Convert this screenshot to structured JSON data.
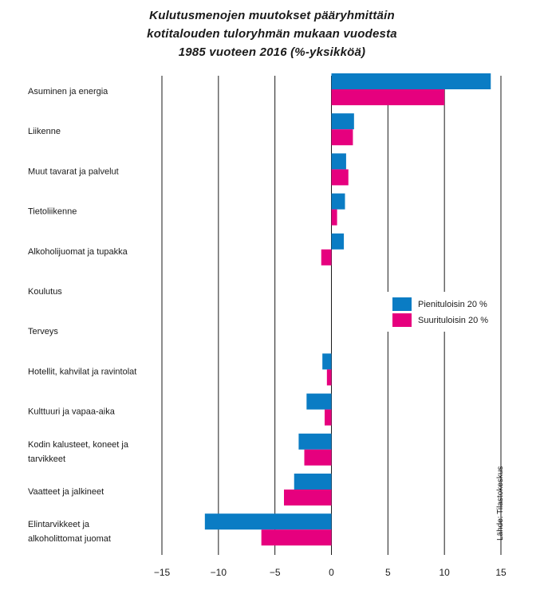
{
  "chart_data": {
    "type": "bar",
    "orientation": "horizontal",
    "title_lines": [
      "Kulutusmenojen muutokset pääryhmittäin",
      "kotitalouden tuloryhmän mukaan vuodesta",
      "1985 vuoteen 2016 (%-yksikköä)"
    ],
    "categories": [
      [
        "Asuminen ja energia"
      ],
      [
        "Liikenne"
      ],
      [
        "Muut tavarat ja palvelut"
      ],
      [
        "Tietoliikenne"
      ],
      [
        "Alkoholijuomat ja tupakka"
      ],
      [
        "Koulutus"
      ],
      [
        "Terveys"
      ],
      [
        "Hotellit, kahvilat ja ravintolat"
      ],
      [
        "Kulttuuri ja vapaa-aika"
      ],
      [
        "Kodin kalusteet, koneet ja",
        "tarvikkeet"
      ],
      [
        "Vaatteet ja jalkineet"
      ],
      [
        "Elintarvikkeet ja",
        "alkoholittomat juomat"
      ]
    ],
    "series": [
      {
        "name": "Pienituloisin 20 %",
        "color": "#0a7cc4",
        "values": [
          14.1,
          2.0,
          1.3,
          1.2,
          1.1,
          0,
          0,
          -0.8,
          -2.2,
          -2.9,
          -3.3,
          -11.2
        ]
      },
      {
        "name": "Suurituloisin 20 %",
        "color": "#e6007e",
        "values": [
          10.0,
          1.9,
          1.5,
          0.5,
          -0.9,
          0,
          0,
          -0.4,
          -0.6,
          -2.4,
          -4.2,
          -6.2
        ]
      }
    ],
    "xlim": [
      -15,
      15
    ],
    "xticks": [
      -15,
      -10,
      -5,
      0,
      5,
      10,
      15
    ],
    "grid": "vertical",
    "legend_position": "right-middle",
    "source": "Lähde: Tilastokeskus"
  }
}
